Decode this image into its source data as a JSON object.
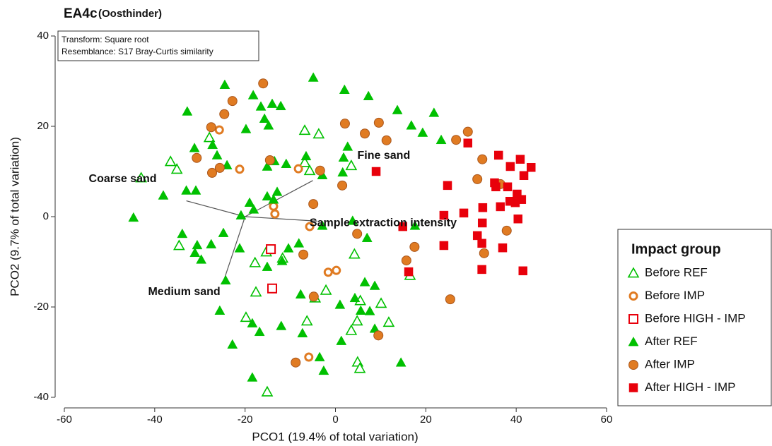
{
  "chart_data": {
    "type": "scatter",
    "title": "EA4c",
    "subtitle": "(Oosthinder)",
    "notes": [
      "Transform: Square root",
      "Resemblance: S17 Bray-Curtis similarity"
    ],
    "x_label": "PCO1 (19.4% of total variation)",
    "y_label": "PCO2 (9.7% of total variation)",
    "xlim": [
      -60,
      60
    ],
    "ylim": [
      -40,
      40
    ],
    "xticks": [
      -60,
      -40,
      -20,
      0,
      20,
      40,
      60
    ],
    "yticks": [
      -40,
      -20,
      0,
      20,
      40
    ],
    "legend_title": "Impact group",
    "legend_position": "right",
    "vector_origin": [
      -20,
      0
    ],
    "vectors": [
      {
        "label": "Fine sand",
        "x": -5,
        "y": 8
      },
      {
        "label": "Coarse sand",
        "x": -33,
        "y": 3.5
      },
      {
        "label": "Sample extraction intensity",
        "x": -4,
        "y": -1
      },
      {
        "label": "Medium sand",
        "x": -25,
        "y": -15
      }
    ],
    "series": [
      {
        "name": "Before REF",
        "color": "#00c000",
        "marker": "triangle",
        "filled": false,
        "x": [
          -43.0,
          -36.5,
          -35.1,
          -27.9,
          -6.8,
          -3.7,
          -6.8,
          -5.7,
          3.5,
          -34.6,
          -15.3,
          -17.8,
          -11.7,
          4.2,
          -17.6,
          -19.8,
          -6.3,
          -2.1,
          -4.5,
          4.8,
          3.5,
          5.5,
          10.1,
          11.8,
          4.9,
          5.4,
          -15.1,
          16.5
        ],
        "values": [
          8.6,
          12.2,
          10.5,
          17.5,
          19.1,
          18.3,
          12.0,
          10.2,
          11.3,
          -6.4,
          -7.8,
          -10.2,
          -9.2,
          -8.3,
          -16.7,
          -22.3,
          -23.1,
          -16.3,
          -18.0,
          -23.1,
          -25.2,
          -18.6,
          -19.2,
          -23.4,
          -32.2,
          -33.6,
          -38.8,
          -13.0
        ]
      },
      {
        "name": "Before IMP",
        "color": "#e07b22",
        "marker": "circle",
        "filled": false,
        "x": [
          -25.7,
          -21.2,
          -8.2,
          -13.7,
          -13.4,
          -5.7,
          -1.6,
          0.2,
          -5.9
        ],
        "values": [
          19.2,
          10.5,
          10.6,
          2.3,
          0.6,
          -2.2,
          -12.3,
          -11.9,
          -31.1
        ]
      },
      {
        "name": "Before HIGH - IMP",
        "color": "#e8000b",
        "marker": "square",
        "filled": false,
        "x": [
          -14.3,
          -14.0
        ],
        "values": [
          -7.2,
          -15.9
        ]
      },
      {
        "name": "After REF",
        "color": "#00c000",
        "marker": "triangle",
        "filled": true,
        "x": [
          -4.9,
          -24.5,
          2.0,
          7.3,
          -18.2,
          -14.0,
          -16.5,
          -12.1,
          -32.8,
          -15.7,
          -19.8,
          -14.8,
          13.7,
          21.8,
          16.8,
          19.3,
          23.4,
          -31.2,
          -27.2,
          -26.2,
          -24.0,
          -15.1,
          -13.5,
          -10.9,
          -6.5,
          2.7,
          1.8,
          -2.9,
          1.6,
          -38.1,
          -33.0,
          -30.9,
          -19.0,
          -12.9,
          -15.1,
          -13.7,
          -18.1,
          -44.7,
          -33.9,
          -24.8,
          -20.9,
          -30.6,
          -27.5,
          -31.1,
          -29.7,
          -21.2,
          -15.1,
          -11.8,
          -10.4,
          -8.1,
          -2.9,
          3.8,
          7.0,
          17.6,
          -24.3,
          -25.6,
          -16.8,
          -22.8,
          -18.4,
          -12.0,
          -7.7,
          -7.3,
          -3.5,
          -2.6,
          1.3,
          1.0,
          4.3,
          6.5,
          8.7,
          5.6,
          8.7,
          7.6,
          -18.4,
          14.5
        ],
        "values": [
          30.8,
          29.2,
          28.1,
          26.7,
          26.9,
          25.0,
          24.4,
          24.5,
          23.3,
          21.7,
          19.4,
          20.2,
          23.6,
          23.0,
          20.2,
          18.6,
          17.0,
          15.2,
          15.9,
          13.6,
          11.4,
          11.1,
          12.3,
          11.7,
          13.4,
          15.5,
          13.1,
          9.2,
          9.8,
          4.7,
          5.8,
          5.8,
          3.1,
          5.5,
          4.5,
          3.8,
          1.6,
          -0.2,
          -3.8,
          -3.6,
          0.3,
          -6.3,
          -6.1,
          -8.0,
          -9.5,
          -7.0,
          -11.1,
          -9.8,
          -7.0,
          -5.9,
          -2.0,
          -0.9,
          -4.7,
          -2.0,
          -14.1,
          -20.8,
          -25.5,
          -28.3,
          -23.6,
          -24.2,
          -17.2,
          -25.8,
          -31.1,
          -34.1,
          -27.5,
          -19.5,
          -18.0,
          -14.5,
          -15.3,
          -20.8,
          -24.8,
          -20.9,
          -35.6,
          -32.3
        ]
      },
      {
        "name": "After IMP",
        "color": "#e07b22",
        "marker": "circle",
        "filled": true,
        "x": [
          -16.0,
          -22.8,
          -24.6,
          -27.5,
          -14.5,
          -30.7,
          -27.3,
          -25.6,
          -3.4,
          1.5,
          -4.9,
          2.1,
          6.5,
          9.6,
          11.3,
          26.7,
          29.3,
          32.5,
          31.4,
          36.5,
          37.9,
          32.9,
          17.5,
          15.7,
          4.8,
          -7.1,
          -4.8,
          25.4,
          9.5,
          -8.8
        ],
        "values": [
          29.5,
          25.6,
          22.7,
          19.8,
          12.5,
          13.0,
          9.7,
          10.8,
          10.2,
          6.9,
          2.8,
          20.6,
          18.4,
          20.8,
          16.9,
          17.0,
          18.8,
          12.7,
          8.3,
          7.2,
          -3.1,
          -8.1,
          -6.7,
          -9.7,
          -3.8,
          -8.4,
          -17.7,
          -18.3,
          -26.3,
          -32.3
        ]
      },
      {
        "name": "After HIGH - IMP",
        "color": "#e8000b",
        "marker": "square",
        "filled": true,
        "x": [
          9.0,
          24.8,
          29.3,
          36.1,
          38.7,
          40.9,
          43.3,
          41.7,
          35.2,
          35.5,
          38.1,
          40.2,
          41.2,
          39.8,
          38.6,
          36.5,
          32.6,
          28.4,
          24.0,
          32.5,
          40.4,
          31.4,
          32.4,
          24.0,
          37.0,
          14.9,
          16.2,
          32.4,
          41.5
        ],
        "values": [
          10.0,
          6.9,
          16.3,
          13.6,
          11.1,
          12.7,
          10.9,
          9.1,
          7.5,
          6.6,
          6.6,
          5.0,
          3.8,
          3.1,
          3.4,
          2.2,
          2.0,
          0.8,
          0.3,
          -1.4,
          -0.5,
          -4.2,
          -5.9,
          -6.4,
          -6.9,
          -2.2,
          -12.2,
          -11.7,
          -12.0
        ]
      }
    ]
  }
}
